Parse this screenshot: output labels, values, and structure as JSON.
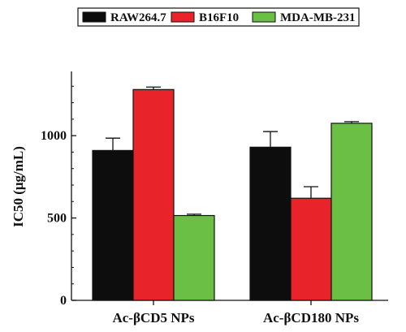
{
  "chart_data": {
    "type": "bar",
    "title": "",
    "xlabel": "",
    "ylabel": "IC50 (μg/mL)",
    "categories": [
      "Ac-βCD5 NPs",
      "Ac-βCD180 NPs"
    ],
    "series": [
      {
        "name": "RAW264.7",
        "color": "#0d0d0d",
        "values": [
          910,
          930
        ],
        "errors": [
          75,
          95
        ]
      },
      {
        "name": "B16F10",
        "color": "#e8232a",
        "values": [
          1280,
          620
        ],
        "errors": [
          15,
          70
        ]
      },
      {
        "name": "MDA-MB-231",
        "color": "#6cbf45",
        "values": [
          515,
          1075
        ],
        "errors": [
          8,
          10
        ]
      }
    ],
    "ylim": [
      0,
      1390
    ],
    "yticks": [
      0,
      500,
      1000
    ],
    "ytick_labels": [
      "0",
      "500",
      "1000"
    ],
    "legend_position": "top",
    "grid": false
  }
}
